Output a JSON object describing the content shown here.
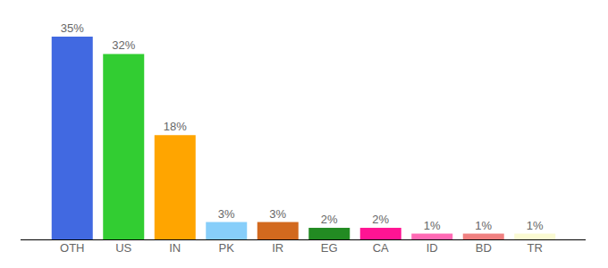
{
  "chart_data": {
    "type": "bar",
    "categories": [
      "OTH",
      "US",
      "IN",
      "PK",
      "IR",
      "EG",
      "CA",
      "ID",
      "BD",
      "TR"
    ],
    "values": [
      35,
      32,
      18,
      3,
      3,
      2,
      2,
      1,
      1,
      1
    ],
    "value_labels": [
      "35%",
      "32%",
      "18%",
      "3%",
      "3%",
      "2%",
      "2%",
      "1%",
      "1%",
      "1%"
    ],
    "colors": [
      "#4169e1",
      "#32cd32",
      "#ffa500",
      "#87cefa",
      "#d2691e",
      "#228b22",
      "#ff1493",
      "#ff69b4",
      "#f08080",
      "#fafad2"
    ],
    "ylim": [
      0,
      35
    ],
    "data_labels": true,
    "tick_labels": "x",
    "grid": false
  }
}
